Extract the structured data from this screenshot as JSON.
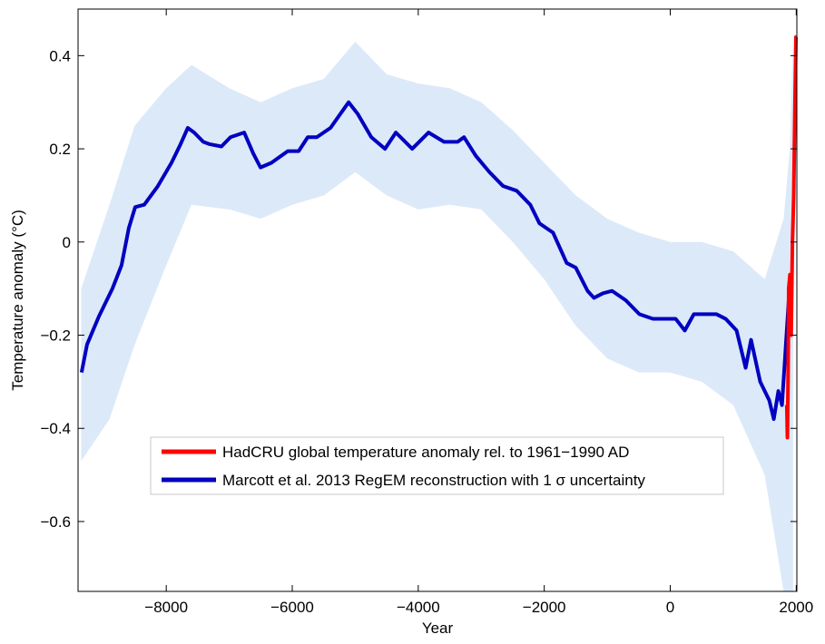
{
  "chart_data": {
    "type": "line",
    "xlabel": "Year",
    "ylabel": "Temperature anomaly (°C)",
    "xlim": [
      -9400,
      2010
    ],
    "ylim": [
      -0.75,
      0.5
    ],
    "xticks": [
      -8000,
      -6000,
      -4000,
      -2000,
      0,
      2000
    ],
    "yticks": [
      0.4,
      0.2,
      0,
      -0.2,
      -0.4,
      -0.6
    ],
    "xtick_labels": [
      "−8000",
      "−6000",
      "−4000",
      "−2000",
      "0",
      "2000"
    ],
    "ytick_labels": [
      "0.4",
      "0.2",
      "0",
      "−0.2",
      "−0.4",
      "−0.6"
    ],
    "grid": false,
    "legend_position": "lower-center",
    "series": [
      {
        "name": "HadCRU global temperature anomaly rel. to 1961−1990 AD",
        "color": "#ff0000",
        "x": [
          1850,
          1860,
          1870,
          1880,
          1900,
          1920,
          1940,
          1960,
          1980,
          1995,
          2000
        ],
        "y": [
          -0.35,
          -0.42,
          -0.3,
          -0.1,
          -0.07,
          -0.2,
          0.0,
          0.1,
          0.3,
          0.44,
          0.44
        ]
      },
      {
        "name": "Marcott et al. 2013 RegEM reconstruction with 1 σ uncertainty",
        "color": "#0000c0",
        "x": [
          -9344,
          -9257,
          -9070,
          -8854,
          -8710,
          -8594,
          -8493,
          -8349,
          -8133,
          -7917,
          -7773,
          -7658,
          -7557,
          -7412,
          -7311,
          -7124,
          -6980,
          -6763,
          -6619,
          -6504,
          -6331,
          -6071,
          -5898,
          -5754,
          -5610,
          -5393,
          -5105,
          -4961,
          -4745,
          -4528,
          -4355,
          -4096,
          -3836,
          -3591,
          -3375,
          -3274,
          -3086,
          -2870,
          -2653,
          -2437,
          -2221,
          -2076,
          -1860,
          -1644,
          -1500,
          -1312,
          -1211,
          -1067,
          -923,
          -707,
          -490,
          -274,
          -130,
          87,
          231,
          375,
          519,
          735,
          880,
          1053,
          1197,
          1283,
          1428,
          1572,
          1644,
          1716,
          1774,
          1890
        ],
        "y": [
          -0.28,
          -0.22,
          -0.16,
          -0.1,
          -0.05,
          0.03,
          0.075,
          0.08,
          0.12,
          0.17,
          0.21,
          0.245,
          0.235,
          0.215,
          0.21,
          0.205,
          0.225,
          0.235,
          0.19,
          0.16,
          0.17,
          0.195,
          0.195,
          0.225,
          0.225,
          0.245,
          0.3,
          0.275,
          0.225,
          0.2,
          0.235,
          0.2,
          0.235,
          0.215,
          0.215,
          0.225,
          0.185,
          0.15,
          0.12,
          0.11,
          0.08,
          0.04,
          0.02,
          -0.045,
          -0.055,
          -0.105,
          -0.12,
          -0.11,
          -0.105,
          -0.125,
          -0.155,
          -0.165,
          -0.165,
          -0.165,
          -0.19,
          -0.155,
          -0.155,
          -0.155,
          -0.165,
          -0.19,
          -0.27,
          -0.21,
          -0.3,
          -0.34,
          -0.38,
          -0.32,
          -0.35,
          -0.105
        ]
      }
    ],
    "uncertainty_band": {
      "color": "#dce9f8",
      "x": [
        -9350,
        -8900,
        -8500,
        -8000,
        -7600,
        -7000,
        -6500,
        -6000,
        -5500,
        -5000,
        -4500,
        -4000,
        -3500,
        -3000,
        -2500,
        -2000,
        -1500,
        -1000,
        -500,
        0,
        500,
        1000,
        1500,
        1800,
        1900,
        1950
      ],
      "upper": [
        -0.1,
        0.08,
        0.25,
        0.33,
        0.38,
        0.33,
        0.3,
        0.33,
        0.35,
        0.43,
        0.36,
        0.34,
        0.33,
        0.3,
        0.24,
        0.17,
        0.1,
        0.05,
        0.02,
        0.0,
        0.0,
        -0.02,
        -0.08,
        0.05,
        0.2,
        0.45
      ],
      "lower": [
        -0.47,
        -0.38,
        -0.22,
        -0.05,
        0.08,
        0.07,
        0.05,
        0.08,
        0.1,
        0.15,
        0.1,
        0.07,
        0.08,
        0.07,
        0.0,
        -0.08,
        -0.18,
        -0.25,
        -0.28,
        -0.28,
        -0.3,
        -0.35,
        -0.5,
        -0.75,
        -0.75,
        -0.75
      ]
    }
  }
}
